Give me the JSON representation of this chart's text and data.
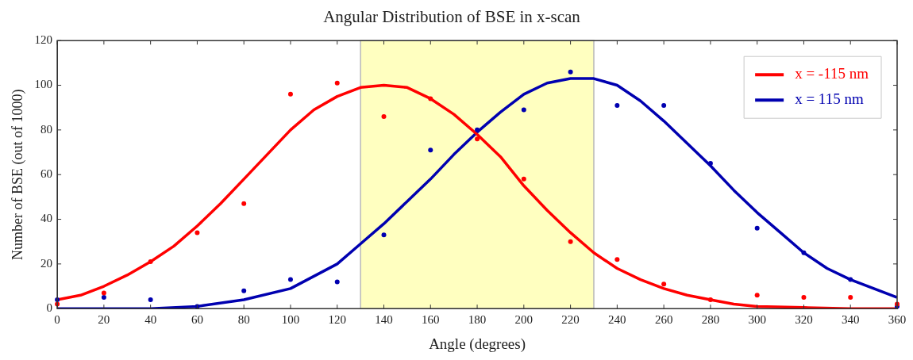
{
  "chart_data": {
    "type": "scatter",
    "title": "Angular Distribution of BSE in x-scan",
    "xlabel": "Angle (degrees)",
    "ylabel": "Number of BSE (out of 1000)",
    "xlim": [
      0,
      360
    ],
    "xticks": [
      0,
      20,
      40,
      60,
      80,
      100,
      120,
      140,
      160,
      180,
      200,
      220,
      240,
      260,
      280,
      300,
      320,
      340,
      360
    ],
    "ylim": [
      0,
      120
    ],
    "yticks": [
      0,
      20,
      40,
      60,
      80,
      100,
      120
    ],
    "grid": false,
    "legend": "top right",
    "bands": [
      {
        "axis": "x",
        "from": 130,
        "to": 230,
        "color": "#ffffc0"
      }
    ],
    "series": [
      {
        "type": "scatter",
        "marker": "circle",
        "color": "#ff0000",
        "x": [
          0,
          20,
          40,
          60,
          80,
          100,
          120,
          140,
          160,
          180,
          200,
          220,
          240,
          260,
          280,
          300,
          320,
          340,
          360
        ],
        "values": [
          2,
          7,
          21,
          34,
          47,
          96,
          101,
          86,
          94,
          76,
          58,
          30,
          22,
          11,
          4,
          6,
          5,
          5,
          2
        ]
      },
      {
        "type": "scatter",
        "marker": "circle",
        "color": "#0000b0",
        "x": [
          0,
          20,
          40,
          60,
          80,
          100,
          120,
          140,
          160,
          180,
          200,
          220,
          240,
          260,
          280,
          300,
          320,
          340,
          360
        ],
        "values": [
          4,
          5,
          4,
          1,
          8,
          13,
          12,
          33,
          71,
          80,
          89,
          106,
          91,
          91,
          65,
          36,
          25,
          13,
          1
        ]
      },
      {
        "type": "line",
        "marker": "none",
        "line_style": "solid",
        "name": "x = -115 nm",
        "color": "#ff0000",
        "x": [
          0,
          10,
          20,
          30,
          40,
          50,
          60,
          70,
          80,
          90,
          100,
          110,
          120,
          130,
          140,
          150,
          160,
          170,
          180,
          190,
          200,
          210,
          220,
          230,
          240,
          250,
          260,
          270,
          280,
          290,
          300,
          320,
          340,
          360
        ],
        "values": [
          4,
          6,
          10,
          15,
          21,
          28,
          37,
          47,
          58,
          69,
          80,
          89,
          95,
          99,
          100,
          99,
          94,
          87,
          78,
          68,
          55,
          44,
          34,
          25,
          18,
          13,
          9,
          6,
          4,
          2,
          1,
          0.5,
          0,
          0
        ]
      },
      {
        "type": "line",
        "marker": "none",
        "line_style": "solid",
        "name": "x = 115 nm",
        "color": "#0000b0",
        "x": [
          0,
          40,
          60,
          80,
          100,
          120,
          130,
          140,
          150,
          160,
          170,
          180,
          190,
          200,
          210,
          220,
          230,
          240,
          250,
          260,
          270,
          280,
          290,
          300,
          310,
          320,
          330,
          340,
          350,
          360
        ],
        "values": [
          0,
          0,
          1,
          4,
          9,
          20,
          29,
          38,
          48,
          58,
          69,
          79,
          88,
          96,
          101,
          103,
          103,
          100,
          93,
          84,
          74,
          64,
          53,
          43,
          34,
          25,
          18,
          13,
          9,
          5
        ]
      }
    ]
  }
}
